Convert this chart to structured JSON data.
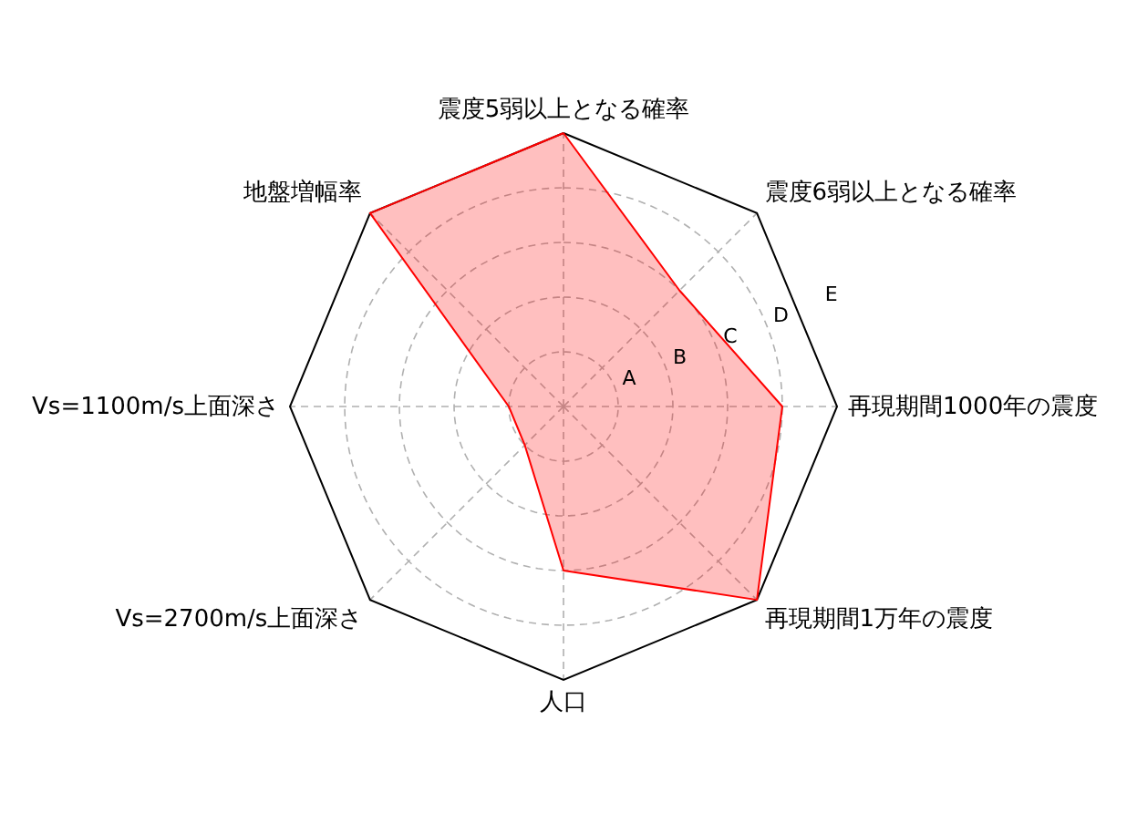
{
  "chart_data": {
    "type": "radar",
    "categories": [
      "震度5弱以上となる確率",
      "震度6弱以上となる確率",
      "再現期間1000年の震度",
      "再現期間1万年の震度",
      "人口",
      "Vs=2700m/s上面深さ",
      "Vs=1100m/s上面深さ",
      "地盤増幅率"
    ],
    "series": [
      {
        "color": "#ff0000",
        "values": [
          5,
          3,
          4,
          5,
          3,
          1,
          1,
          5
        ]
      }
    ],
    "ylim": [
      0,
      5
    ],
    "yticks": [
      {
        "value": 1,
        "label": "A"
      },
      {
        "value": 2,
        "label": "B"
      },
      {
        "value": 3,
        "label": "C"
      },
      {
        "value": 4,
        "label": "D"
      },
      {
        "value": 5,
        "label": "E"
      }
    ],
    "grid": true
  }
}
